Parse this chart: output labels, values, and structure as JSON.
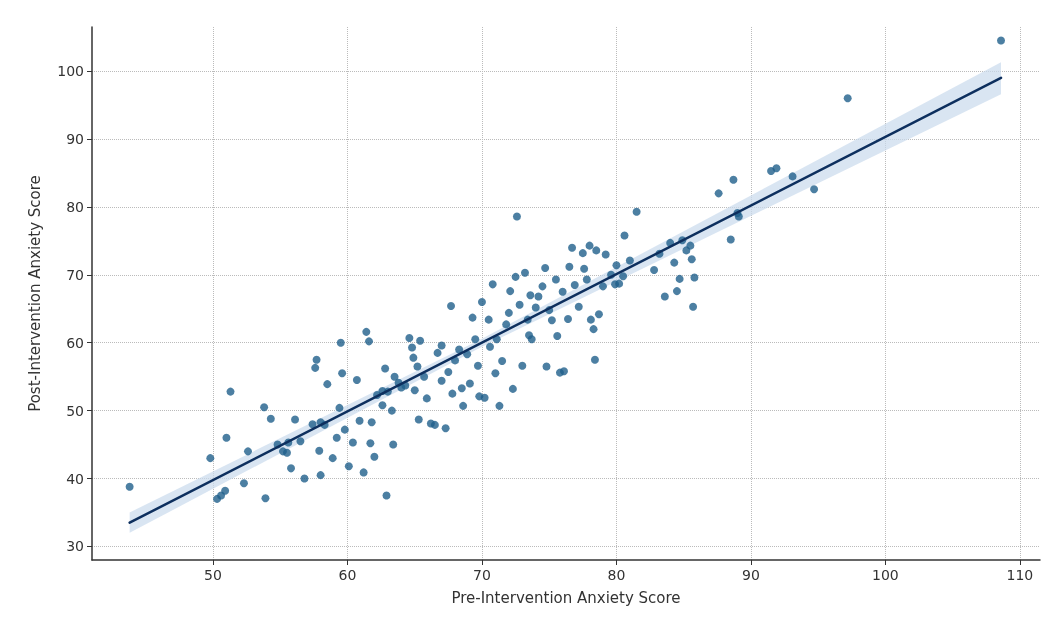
{
  "chart_data": {
    "type": "scatter",
    "xlabel": "Pre-Intervention Anxiety Score",
    "ylabel": "Post-Intervention Anxiety Score",
    "xlim": [
      41,
      111.5
    ],
    "ylim": [
      28,
      106.5
    ],
    "xticks": [
      50,
      60,
      70,
      80,
      90,
      100,
      110
    ],
    "yticks": [
      30,
      40,
      50,
      60,
      70,
      80,
      90,
      100
    ],
    "grid": true,
    "marker": "circle",
    "series": [
      {
        "type": "scatter",
        "color": "#1f5f8b",
        "x": [
          43.8,
          49.8,
          50.3,
          50.6,
          50.9,
          51,
          51.3,
          52.3,
          52.6,
          53.8,
          53.9,
          54.3,
          54.8,
          55.2,
          55.5,
          55.6,
          55.8,
          56.1,
          56.5,
          56.8,
          57.4,
          57.6,
          57.7,
          57.9,
          58,
          58,
          58.3,
          58.5,
          58.9,
          59.2,
          59.4,
          59.5,
          59.6,
          59.8,
          60.1,
          60.4,
          60.7,
          60.9,
          61.2,
          61.4,
          61.6,
          61.7,
          61.8,
          62,
          62.2,
          62.6,
          62.6,
          62.8,
          62.9,
          63,
          63.3,
          63.5,
          63.4,
          63.8,
          64,
          64.3,
          64.6,
          64.8,
          64.9,
          65,
          65.2,
          65.3,
          65.4,
          65.7,
          65.9,
          66.2,
          66.5,
          66.7,
          67,
          67,
          67.3,
          67.5,
          67.7,
          67.8,
          68,
          68.3,
          68.5,
          68.6,
          68.9,
          69.1,
          69.3,
          69.5,
          69.7,
          69.8,
          70,
          70.2,
          70.5,
          70.6,
          70.8,
          71,
          71.1,
          71.3,
          71.5,
          71.8,
          72,
          72.1,
          72.3,
          72.5,
          72.6,
          72.8,
          73,
          73.2,
          73.4,
          73.5,
          73.6,
          73.7,
          74,
          74.2,
          74.5,
          74.7,
          74.8,
          75,
          75.2,
          75.5,
          75.6,
          75.8,
          76,
          76.1,
          76.4,
          76.5,
          76.7,
          76.9,
          77.2,
          77.5,
          77.6,
          77.8,
          78,
          78.1,
          78.3,
          78.4,
          78.5,
          78.7,
          79,
          79.2,
          79.6,
          79.9,
          80,
          80.2,
          80.5,
          80.6,
          81,
          81.5,
          82.8,
          83.2,
          83.6,
          84,
          84.3,
          84.5,
          84.7,
          84.9,
          85.2,
          85.5,
          85.6,
          85.7,
          85.8,
          87.6,
          88.5,
          88.7,
          89.1,
          89,
          91.5,
          91.9,
          93.1,
          94.7,
          97.2,
          108.6
        ],
        "values": [
          38.8,
          43,
          37,
          37.5,
          38.2,
          46,
          52.8,
          39.3,
          44,
          50.5,
          37.1,
          48.8,
          45,
          44,
          43.8,
          45.3,
          41.5,
          48.7,
          45.5,
          40,
          48,
          56.3,
          57.5,
          44.1,
          40.5,
          48.3,
          47.9,
          53.9,
          43,
          46,
          50.4,
          60,
          55.5,
          47.2,
          41.8,
          45.3,
          54.5,
          48.5,
          40.9,
          61.6,
          60.2,
          45.2,
          48.3,
          43.2,
          52.3,
          52.9,
          50.8,
          56.2,
          37.5,
          52.8,
          50,
          55,
          45,
          54.1,
          53.4,
          53.7,
          60.7,
          59.3,
          57.8,
          53,
          56.5,
          48.7,
          60.3,
          55,
          51.8,
          48.1,
          47.9,
          58.5,
          59.6,
          54.4,
          47.4,
          55.7,
          65.4,
          52.5,
          57.4,
          59,
          53.3,
          50.7,
          58.3,
          54,
          63.7,
          60.5,
          56.6,
          52.1,
          66,
          51.9,
          63.4,
          59.4,
          68.6,
          55.5,
          60.5,
          50.7,
          57.3,
          62.7,
          64.4,
          67.6,
          53.2,
          69.7,
          78.6,
          65.6,
          56.6,
          70.3,
          63.4,
          61.1,
          67,
          60.5,
          65.2,
          66.8,
          68.3,
          71,
          56.5,
          64.8,
          63.3,
          69.3,
          61,
          55.6,
          67.5,
          55.8,
          63.5,
          71.2,
          74,
          68.5,
          65.3,
          73.2,
          70.9,
          69.3,
          74.3,
          63.4,
          62,
          57.5,
          73.6,
          64.2,
          68.3,
          73,
          70,
          68.6,
          71.4,
          68.7,
          69.8,
          75.8,
          72.1,
          79.3,
          70.7,
          73.1,
          66.8,
          74.7,
          71.8,
          67.6,
          69.4,
          75.1,
          73.6,
          74.3,
          72.3,
          65.3,
          69.6,
          82,
          75.2,
          84,
          78.6,
          79.1,
          85.3,
          85.7,
          84.5,
          82.6,
          96,
          104.5
        ]
      },
      {
        "type": "line",
        "color": "#0d2f5e",
        "marker": "none",
        "line_style": "solid",
        "x": [
          43.8,
          70,
          108.6
        ],
        "values": [
          33.5,
          60,
          99
        ],
        "lower": [
          32,
          59.4,
          96.6
        ],
        "upper": [
          35,
          60.6,
          101.3
        ]
      }
    ]
  }
}
